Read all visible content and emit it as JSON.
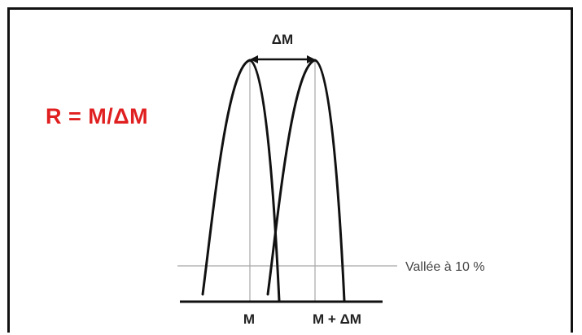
{
  "formula": {
    "text": "R = M/ΔM",
    "color": "#e02020"
  },
  "labels": {
    "delta_m": "ΔM",
    "m": "M",
    "m_plus_delta_m": "M + ΔM",
    "valley": "Vallée à 10 %"
  },
  "colors": {
    "curve": "#111111",
    "guide": "#a8a8a8",
    "text": "#222222"
  }
}
